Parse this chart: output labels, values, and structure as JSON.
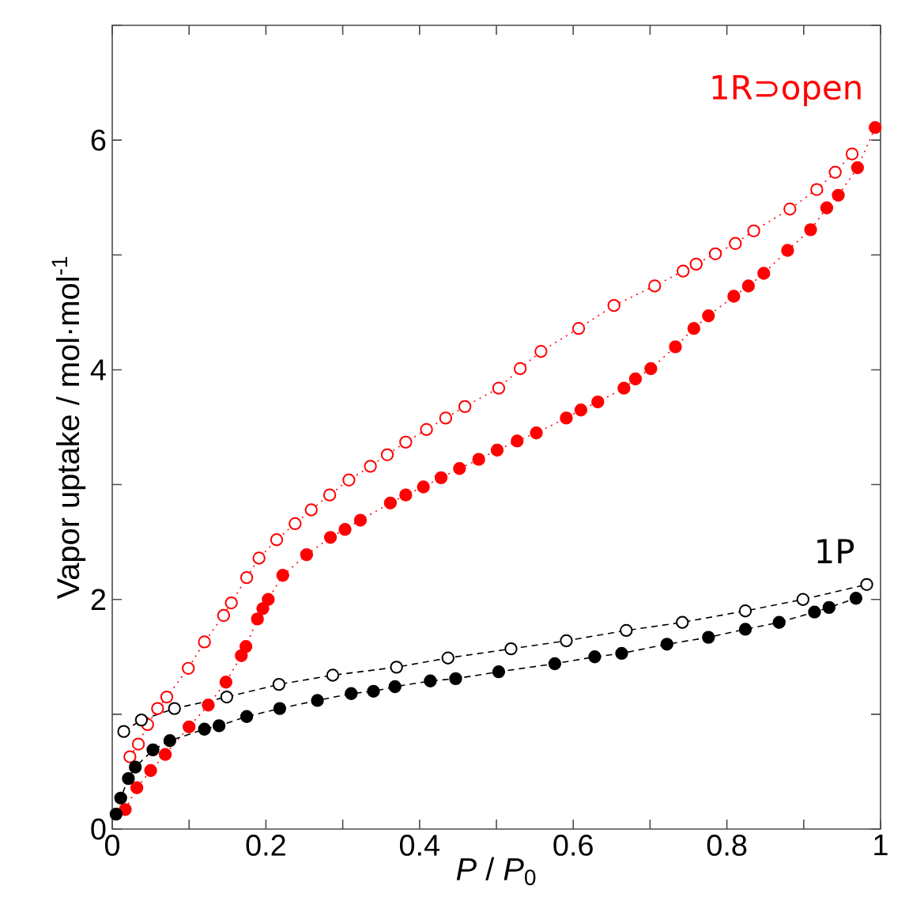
{
  "chart_data": {
    "type": "line",
    "xlabel": "*P* / *P*$_{0}$",
    "ylabel": "Vapor uptake / mol·mol$^{-1}$",
    "xlim": [
      0,
      1
    ],
    "ylim": [
      0,
      7
    ],
    "xticks": [
      0,
      {
        "value": 0.1,
        "label": null
      },
      0.2,
      {
        "value": 0.3,
        "label": null
      },
      0.4,
      {
        "value": 0.5,
        "label": null
      },
      0.6,
      {
        "value": 0.7,
        "label": null
      },
      0.8,
      {
        "value": 0.9,
        "label": null
      },
      1
    ],
    "yticks": [
      0,
      {
        "value": 1,
        "label": null
      },
      2,
      {
        "value": 3,
        "label": null
      },
      4,
      {
        "value": 5,
        "label": null
      },
      6,
      {
        "value": 7,
        "label": null
      }
    ],
    "marker": "circle",
    "series": [
      {
        "name": "1R⊃open",
        "color": "#ff0000",
        "line_style": "dotted",
        "x": [
          0.017,
          0.032,
          0.05,
          0.069,
          0.1,
          0.125,
          0.148,
          0.168,
          0.174,
          0.189,
          0.196,
          0.203,
          0.222,
          0.253,
          0.284,
          0.303,
          0.323,
          0.362,
          0.382,
          0.405,
          0.428,
          0.452,
          0.477,
          0.501,
          0.527,
          0.552,
          0.591,
          0.61,
          0.632,
          0.666,
          0.681,
          0.701,
          0.733,
          0.757,
          0.776,
          0.809,
          0.828,
          0.848,
          0.879,
          0.909,
          0.93,
          0.945,
          0.97,
          0.993
        ],
        "values": [
          0.17,
          0.36,
          0.51,
          0.65,
          0.89,
          1.08,
          1.28,
          1.51,
          1.59,
          1.83,
          1.92,
          2.0,
          2.21,
          2.39,
          2.54,
          2.61,
          2.69,
          2.84,
          2.91,
          2.98,
          3.06,
          3.14,
          3.22,
          3.3,
          3.38,
          3.45,
          3.58,
          3.65,
          3.72,
          3.84,
          3.92,
          4.01,
          4.2,
          4.36,
          4.47,
          4.64,
          4.73,
          4.84,
          5.04,
          5.22,
          5.41,
          5.52,
          5.76,
          6.11
        ]
      },
      {
        "color": "#ff0000",
        "line_style": "dotted",
        "x": [
          0.023,
          0.034,
          0.046,
          0.059,
          0.071,
          0.099,
          0.12,
          0.145,
          0.155,
          0.175,
          0.191,
          0.214,
          0.238,
          0.259,
          0.283,
          0.308,
          0.336,
          0.358,
          0.382,
          0.409,
          0.434,
          0.459,
          0.503,
          0.531,
          0.558,
          0.607,
          0.653,
          0.706,
          0.743,
          0.76,
          0.785,
          0.811,
          0.835,
          0.882,
          0.917,
          0.941,
          0.963
        ],
        "values": [
          0.63,
          0.74,
          0.91,
          1.05,
          1.15,
          1.4,
          1.63,
          1.86,
          1.97,
          2.19,
          2.36,
          2.52,
          2.66,
          2.78,
          2.91,
          3.04,
          3.16,
          3.26,
          3.37,
          3.48,
          3.58,
          3.68,
          3.84,
          4.01,
          4.16,
          4.36,
          4.56,
          4.73,
          4.86,
          4.92,
          5.01,
          5.1,
          5.21,
          5.4,
          5.57,
          5.72,
          5.88
        ]
      },
      {
        "color": "#000000",
        "line_style": "dashed",
        "x": [
          0.005,
          0.011,
          0.021,
          0.03,
          0.053,
          0.075,
          0.12,
          0.139,
          0.175,
          0.218,
          0.267,
          0.311,
          0.34,
          0.368,
          0.414,
          0.447,
          0.503,
          0.576,
          0.628,
          0.663,
          0.722,
          0.776,
          0.824,
          0.868,
          0.914,
          0.933,
          0.968
        ],
        "values": [
          0.13,
          0.27,
          0.44,
          0.54,
          0.69,
          0.77,
          0.87,
          0.9,
          0.98,
          1.05,
          1.12,
          1.18,
          1.2,
          1.24,
          1.29,
          1.31,
          1.37,
          1.44,
          1.5,
          1.53,
          1.61,
          1.67,
          1.74,
          1.8,
          1.89,
          1.93,
          2.01
        ]
      },
      {
        "name": "1P",
        "color": "#000000",
        "line_style": "dashed",
        "x": [
          0.015,
          0.038,
          0.081,
          0.149,
          0.217,
          0.287,
          0.37,
          0.437,
          0.519,
          0.591,
          0.669,
          0.742,
          0.824,
          0.899,
          0.982
        ],
        "values": [
          0.85,
          0.95,
          1.05,
          1.15,
          1.26,
          1.34,
          1.41,
          1.49,
          1.57,
          1.64,
          1.73,
          1.8,
          1.9,
          2.0,
          2.13
        ]
      }
    ]
  }
}
